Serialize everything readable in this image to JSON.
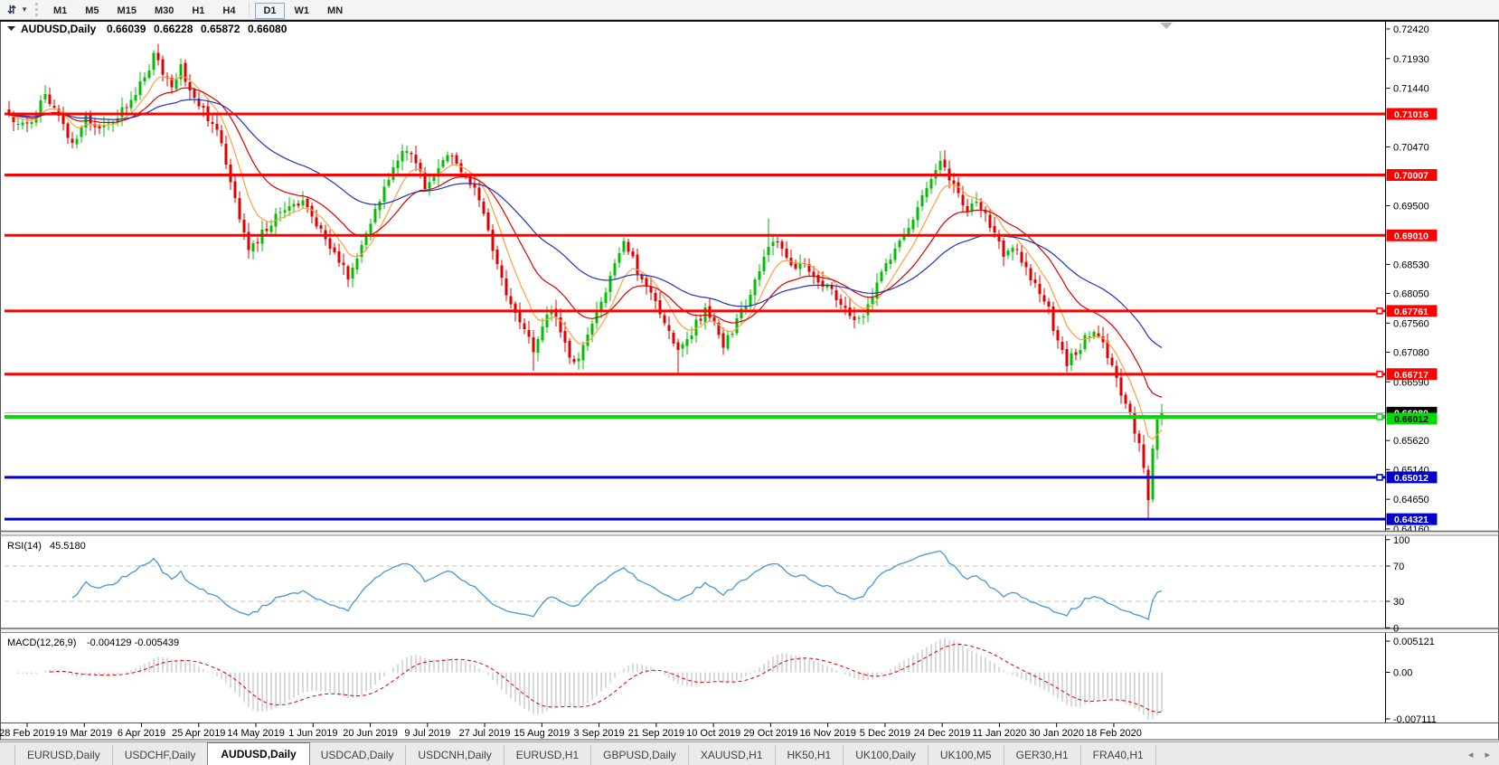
{
  "toolbar": {
    "chart_tool_icon": "chart-shift-icon",
    "dropdown_icon": "caret-down-icon",
    "timeframes": [
      "M1",
      "M5",
      "M15",
      "M30",
      "H1",
      "H4",
      "D1",
      "W1",
      "MN"
    ],
    "active_timeframe": "D1"
  },
  "chart": {
    "title": {
      "symbol": "AUDUSD,Daily",
      "open": "0.66039",
      "high": "0.66228",
      "low": "0.65872",
      "close": "0.66080"
    },
    "price_axis_ticks": [
      "0.72420",
      "0.71930",
      "0.71440",
      "0.70470",
      "0.69500",
      "0.68530",
      "0.68050",
      "0.67560",
      "0.67080",
      "0.66590",
      "0.65620",
      "0.65140",
      "0.64650",
      "0.64160"
    ],
    "date_axis_ticks": [
      "28 Feb 2019",
      "19 Mar 2019",
      "6 Apr 2019",
      "25 Apr 2019",
      "14 May 2019",
      "1 Jun 2019",
      "20 Jun 2019",
      "9 Jul 2019",
      "27 Jul 2019",
      "15 Aug 2019",
      "3 Sep 2019",
      "21 Sep 2019",
      "10 Oct 2019",
      "29 Oct 2019",
      "16 Nov 2019",
      "5 Dec 2019",
      "24 Dec 2019",
      "11 Jan 2020",
      "30 Jan 2020",
      "18 Feb 2020"
    ],
    "horizontal_lines": [
      {
        "price": 0.71016,
        "label": "0.71016",
        "color": "#ff0000",
        "width": 3,
        "marker": false,
        "text_color": "#ffffff"
      },
      {
        "price": 0.70007,
        "label": "0.70007",
        "color": "#ff0000",
        "width": 3,
        "marker": false,
        "text_color": "#ffffff"
      },
      {
        "price": 0.6901,
        "label": "0.69010",
        "color": "#ff0000",
        "width": 3,
        "marker": false,
        "text_color": "#ffffff"
      },
      {
        "price": 0.67761,
        "label": "0.67761",
        "color": "#ff0000",
        "width": 3,
        "marker": true,
        "text_color": "#ffffff"
      },
      {
        "price": 0.66717,
        "label": "0.66717",
        "color": "#ff0000",
        "width": 3,
        "marker": true,
        "text_color": "#ffffff"
      },
      {
        "price": 0.66012,
        "label": "0.66012",
        "color": "#00dd00",
        "width": 4,
        "marker": true,
        "text_color": "#000000"
      },
      {
        "price": 0.65012,
        "label": "0.65012",
        "color": "#0000cc",
        "width": 3,
        "marker": true,
        "text_color": "#ffffff"
      },
      {
        "price": 0.64321,
        "label": "0.64321",
        "color": "#0000cc",
        "width": 3,
        "marker": false,
        "text_color": "#ffffff"
      }
    ],
    "current_price": {
      "value": 0.6608,
      "label": "0.66080"
    }
  },
  "rsi": {
    "label": "RSI(14)",
    "value": "45.5180",
    "axis_ticks": [
      "100",
      "70",
      "30",
      "0"
    ],
    "upper_level": 70,
    "lower_level": 30
  },
  "macd": {
    "label": "MACD(12,26,9)",
    "values_text": "-0.004129 -0.005439",
    "axis_max": "0.005121",
    "axis_zero": "0.00",
    "axis_min": "-0.007111"
  },
  "tabs": {
    "items": [
      "EURUSD,Daily",
      "USDCHF,Daily",
      "AUDUSD,Daily",
      "USDCAD,Daily",
      "USDCNH,Daily",
      "EURUSD,H1",
      "GBPUSD,Daily",
      "XAUUSD,H1",
      "HK50,H1",
      "UK100,Daily",
      "UK100,M5",
      "GER30,H1",
      "FRA40,H1"
    ],
    "active_index": 2,
    "nav_icons": {
      "left": "◂",
      "right": "▸"
    }
  },
  "chart_data": {
    "type": "candlestick",
    "symbol": "AUDUSD",
    "timeframe": "Daily",
    "num_candles": 256,
    "price_axis_range": {
      "top": 0.7242,
      "bottom": 0.6416
    },
    "last_candle": {
      "open": 0.66039,
      "high": 0.66228,
      "low": 0.65872,
      "close": 0.6608
    },
    "close_path_anchors": [
      [
        0,
        0.7105
      ],
      [
        2,
        0.7078
      ],
      [
        5,
        0.7092
      ],
      [
        8,
        0.7132
      ],
      [
        11,
        0.7098
      ],
      [
        14,
        0.7052
      ],
      [
        17,
        0.71
      ],
      [
        20,
        0.7078
      ],
      [
        23,
        0.7092
      ],
      [
        26,
        0.7112
      ],
      [
        29,
        0.7152
      ],
      [
        32,
        0.7195
      ],
      [
        34,
        0.7172
      ],
      [
        36,
        0.715
      ],
      [
        38,
        0.7178
      ],
      [
        40,
        0.714
      ],
      [
        43,
        0.7105
      ],
      [
        46,
        0.7078
      ],
      [
        49,
        0.6992
      ],
      [
        51,
        0.6932
      ],
      [
        53,
        0.688
      ],
      [
        56,
        0.6903
      ],
      [
        59,
        0.6932
      ],
      [
        62,
        0.695
      ],
      [
        65,
        0.6953
      ],
      [
        68,
        0.692
      ],
      [
        71,
        0.6882
      ],
      [
        74,
        0.6852
      ],
      [
        75,
        0.6828
      ],
      [
        77,
        0.6868
      ],
      [
        80,
        0.692
      ],
      [
        83,
        0.6985
      ],
      [
        86,
        0.7022
      ],
      [
        88,
        0.7045
      ],
      [
        90,
        0.7026
      ],
      [
        92,
        0.6982
      ],
      [
        95,
        0.7018
      ],
      [
        98,
        0.7038
      ],
      [
        101,
        0.7
      ],
      [
        104,
        0.6958
      ],
      [
        106,
        0.6905
      ],
      [
        108,
        0.6852
      ],
      [
        110,
        0.68
      ],
      [
        112,
        0.6772
      ],
      [
        114,
        0.6748
      ],
      [
        116,
        0.6712
      ],
      [
        118,
        0.6752
      ],
      [
        120,
        0.6778
      ],
      [
        122,
        0.6742
      ],
      [
        124,
        0.6705
      ],
      [
        126,
        0.6692
      ],
      [
        128,
        0.6735
      ],
      [
        130,
        0.6772
      ],
      [
        132,
        0.6802
      ],
      [
        134,
        0.6855
      ],
      [
        136,
        0.6885
      ],
      [
        138,
        0.6862
      ],
      [
        140,
        0.6825
      ],
      [
        142,
        0.6806
      ],
      [
        144,
        0.6775
      ],
      [
        146,
        0.6745
      ],
      [
        148,
        0.6712
      ],
      [
        150,
        0.6726
      ],
      [
        152,
        0.676
      ],
      [
        154,
        0.6775
      ],
      [
        156,
        0.6755
      ],
      [
        158,
        0.6722
      ],
      [
        160,
        0.6745
      ],
      [
        162,
        0.6775
      ],
      [
        164,
        0.6802
      ],
      [
        166,
        0.6842
      ],
      [
        168,
        0.6876
      ],
      [
        170,
        0.6892
      ],
      [
        172,
        0.6866
      ],
      [
        174,
        0.6846
      ],
      [
        176,
        0.6852
      ],
      [
        178,
        0.684
      ],
      [
        180,
        0.682
      ],
      [
        182,
        0.6806
      ],
      [
        184,
        0.679
      ],
      [
        186,
        0.6775
      ],
      [
        188,
        0.6762
      ],
      [
        190,
        0.6786
      ],
      [
        192,
        0.682
      ],
      [
        194,
        0.685
      ],
      [
        196,
        0.688
      ],
      [
        198,
        0.6906
      ],
      [
        200,
        0.693
      ],
      [
        202,
        0.696
      ],
      [
        204,
        0.6995
      ],
      [
        206,
        0.7025
      ],
      [
        208,
        0.6996
      ],
      [
        210,
        0.6965
      ],
      [
        212,
        0.6942
      ],
      [
        214,
        0.696
      ],
      [
        216,
        0.6936
      ],
      [
        218,
        0.6902
      ],
      [
        220,
        0.687
      ],
      [
        222,
        0.6886
      ],
      [
        224,
        0.6862
      ],
      [
        226,
        0.6832
      ],
      [
        228,
        0.6802
      ],
      [
        230,
        0.6776
      ],
      [
        232,
        0.6722
      ],
      [
        234,
        0.6692
      ],
      [
        236,
        0.6706
      ],
      [
        238,
        0.673
      ],
      [
        240,
        0.6746
      ],
      [
        242,
        0.6722
      ],
      [
        244,
        0.6682
      ],
      [
        246,
        0.6642
      ],
      [
        248,
        0.6602
      ],
      [
        250,
        0.656
      ],
      [
        251,
        0.6512
      ],
      [
        252,
        0.6458
      ],
      [
        253,
        0.6545
      ],
      [
        254,
        0.66
      ],
      [
        255,
        0.6608
      ]
    ],
    "wick_extremes": {
      "32": {
        "high": 0.7207
      },
      "116": {
        "low": 0.6677
      },
      "148": {
        "low": 0.667
      },
      "168": {
        "high": 0.6929
      },
      "206": {
        "high": 0.704
      },
      "252": {
        "low": 0.6434
      }
    },
    "overlays": [
      {
        "name": "fast-ma",
        "color": "#ff9f40",
        "period": 8
      },
      {
        "name": "mid-ma",
        "color": "#dd0000",
        "period": 20
      },
      {
        "name": "slow-ma",
        "color": "#2233bb",
        "period": 45
      }
    ],
    "support_resistance": {
      "red": [
        0.71016,
        0.70007,
        0.6901,
        0.67761,
        0.66717
      ],
      "green": [
        0.66012
      ],
      "blue": [
        0.65012,
        0.64321
      ]
    },
    "indicators": [
      {
        "name": "RSI",
        "period": 14,
        "current": 45.518,
        "levels": [
          30,
          70
        ],
        "range": [
          0,
          100
        ]
      },
      {
        "name": "MACD",
        "params": [
          12,
          26,
          9
        ],
        "current_main": -0.004129,
        "current_signal": -0.005439,
        "range": [
          -0.007111,
          0.005121
        ]
      }
    ],
    "colors": {
      "bull": "#00bf00",
      "bear": "#e00000",
      "rsi_line": "#4a96d2",
      "macd_histogram": "#b4b4b4",
      "macd_signal": "#dd0000",
      "level_dashed": "#c0c0c0",
      "current_price_line": "#b0b0b0"
    }
  }
}
